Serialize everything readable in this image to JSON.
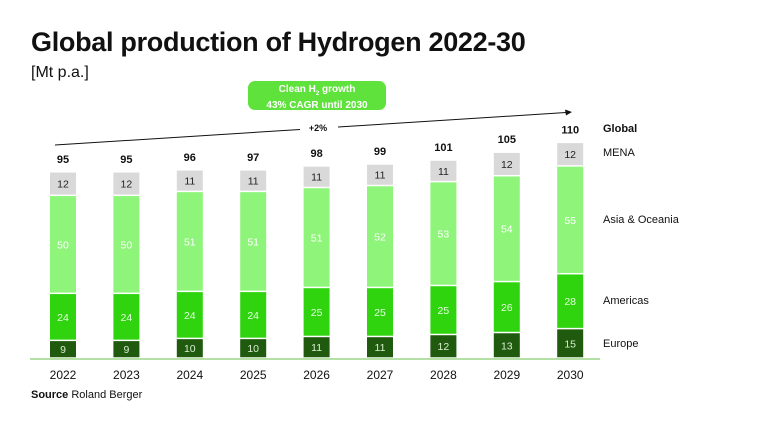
{
  "title": "Global production of Hydrogen 2022-30",
  "unit": "[Mt p.a.]",
  "badge": {
    "line1_prefix": "Clean H",
    "line1_sub": "2",
    "line1_suffix": " growth",
    "line2": "43% CAGR until 2030"
  },
  "trend_label": "+2%",
  "source": {
    "label": "Source",
    "text": "Roland Berger"
  },
  "colors": {
    "Europe": "#1f5a0e",
    "Americas": "#2fd40f",
    "Asia & Oceania": "#8ef57a",
    "MENA": "#d9d9d9"
  },
  "chart_data": {
    "type": "bar",
    "stacked": true,
    "title": "Global production of Hydrogen 2022-30",
    "ylabel": "[Mt p.a.]",
    "categories": [
      "2022",
      "2023",
      "2024",
      "2025",
      "2026",
      "2027",
      "2028",
      "2029",
      "2030"
    ],
    "series": [
      {
        "name": "Europe",
        "values": [
          9,
          9,
          10,
          10,
          11,
          11,
          12,
          13,
          15
        ]
      },
      {
        "name": "Americas",
        "values": [
          24,
          24,
          24,
          24,
          25,
          25,
          25,
          26,
          28
        ]
      },
      {
        "name": "Asia & Oceania",
        "values": [
          50,
          50,
          51,
          51,
          51,
          52,
          53,
          54,
          55
        ]
      },
      {
        "name": "MENA",
        "values": [
          12,
          12,
          11,
          11,
          11,
          11,
          11,
          12,
          12
        ]
      }
    ],
    "totals": {
      "name": "Global",
      "values": [
        95,
        95,
        96,
        97,
        98,
        99,
        101,
        105,
        110
      ]
    },
    "annotations": [
      "+2%",
      "Clean H2 growth 43% CAGR until 2030"
    ],
    "legend": "right",
    "grid": false,
    "ylim": [
      0,
      110
    ]
  }
}
